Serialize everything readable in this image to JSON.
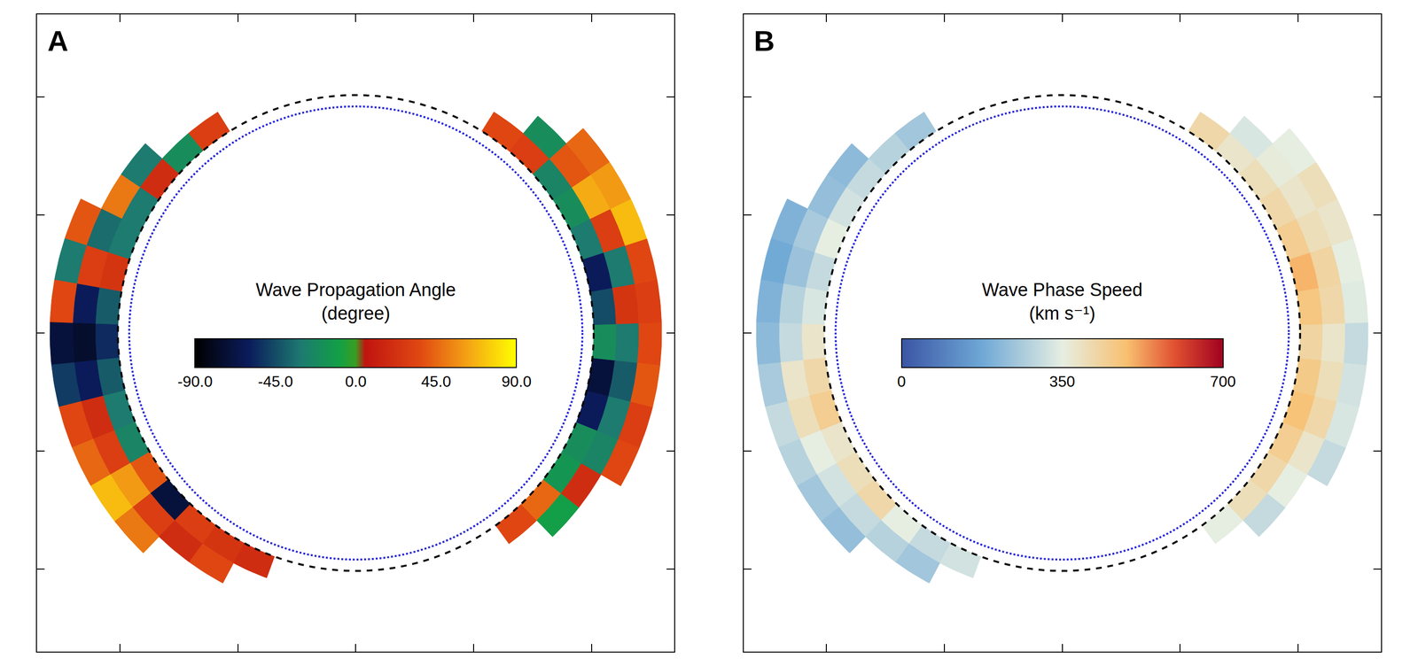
{
  "chart_data": [
    {
      "type": "heatmap",
      "panel": "A",
      "colorbar_title": "Wave Propagation Angle",
      "colorbar_unit": "(degree)",
      "zlim": [
        -90,
        90
      ],
      "zticks": [
        {
          "value": -90,
          "label": "-90.0"
        },
        {
          "value": -45,
          "label": "-45.0"
        },
        {
          "value": 0,
          "label": "0.0"
        },
        {
          "value": 45,
          "label": "45.0"
        },
        {
          "value": 90,
          "label": "90.0"
        }
      ],
      "xlim": [
        -1350,
        1350
      ],
      "ylim": [
        -1350,
        1350
      ],
      "xticks": [
        -1000,
        -500,
        0,
        500,
        1000
      ],
      "yticks": [
        -1000,
        -500,
        0,
        500,
        1000
      ],
      "tick_labels": false,
      "limb_radius": 960,
      "occulter_radius": 1008,
      "radii": [
        1008,
        1104,
        1200,
        1296
      ],
      "arcs": [
        {
          "position_angles": [
            32,
            40,
            48,
            56,
            64,
            72,
            80,
            88,
            96,
            104,
            112,
            120,
            128,
            136,
            144,
            152,
            160
          ],
          "values": [
            [
              30,
              null,
              null
            ],
            [
              -20,
              null,
              null
            ],
            [
              20,
              -30,
              null
            ],
            [
              -30,
              50,
              null
            ],
            [
              -30,
              -35,
              40
            ],
            [
              25,
              30,
              -30
            ],
            [
              -40,
              -60,
              35
            ],
            [
              -55,
              -75,
              -70
            ],
            [
              -40,
              -60,
              -50
            ],
            [
              -30,
              20,
              35
            ],
            [
              -25,
              30,
              45
            ],
            [
              40,
              60,
              70
            ],
            [
              -70,
              30,
              50
            ],
            [
              30,
              20,
              null
            ],
            [
              25,
              35,
              null
            ],
            [
              20,
              null,
              null
            ]
          ]
        },
        {
          "position_angles": [
            216,
            224,
            232,
            240,
            248,
            256,
            264,
            272,
            280,
            288,
            296,
            304,
            312,
            320,
            328
          ],
          "values": [
            [
              35,
              null,
              null
            ],
            [
              45,
              -10,
              null
            ],
            [
              -15,
              20,
              null
            ],
            [
              -20,
              -25,
              35
            ],
            [
              -60,
              -30,
              30
            ],
            [
              -70,
              -40,
              40
            ],
            [
              -20,
              -30,
              35
            ],
            [
              -45,
              25,
              30
            ],
            [
              -60,
              -30,
              35
            ],
            [
              -30,
              30,
              70
            ],
            [
              -20,
              65,
              60
            ],
            [
              -25,
              40,
              45
            ],
            [
              30,
              -20,
              null
            ],
            [
              35,
              null,
              null
            ]
          ]
        }
      ]
    },
    {
      "type": "heatmap",
      "panel": "B",
      "colorbar_title": "Wave Phase Speed",
      "colorbar_unit": "(km s⁻¹)",
      "zlim": [
        0,
        700
      ],
      "zticks": [
        0,
        350,
        700
      ],
      "xlim": [
        -1350,
        1350
      ],
      "ylim": [
        -1350,
        1350
      ],
      "xticks": [
        -1000,
        -500,
        0,
        500,
        1000
      ],
      "yticks": [
        -1000,
        -500,
        0,
        500,
        1000
      ],
      "tick_labels": false,
      "limb_radius": 960,
      "occulter_radius": 1008,
      "radii": [
        1008,
        1104,
        1200,
        1296
      ],
      "arcs": [
        {
          "position_angles": [
            32,
            40,
            48,
            56,
            64,
            72,
            80,
            88,
            96,
            104,
            112,
            120,
            128,
            136,
            144,
            152,
            160
          ],
          "values": [
            [
              250,
              null,
              null
            ],
            [
              280,
              null,
              null
            ],
            [
              300,
              220,
              null
            ],
            [
              320,
              230,
              null
            ],
            [
              350,
              260,
              200
            ],
            [
              300,
              240,
              180
            ],
            [
              330,
              280,
              200
            ],
            [
              380,
              300,
              220
            ],
            [
              420,
              380,
              260
            ],
            [
              450,
              400,
              300
            ],
            [
              380,
              350,
              280
            ],
            [
              400,
              320,
              250
            ],
            [
              420,
              300,
              230
            ],
            [
              350,
              280,
              null
            ],
            [
              300,
              250,
              null
            ],
            [
              320,
              null,
              null
            ]
          ]
        },
        {
          "position_angles": [
            216,
            224,
            232,
            240,
            248,
            256,
            264,
            272,
            280,
            288,
            296,
            304,
            312,
            320,
            328
          ],
          "values": [
            [
              350,
              null,
              null
            ],
            [
              400,
              300,
              null
            ],
            [
              420,
              350,
              null
            ],
            [
              450,
              380,
              300
            ],
            [
              480,
              420,
              330
            ],
            [
              460,
              400,
              320
            ],
            [
              430,
              380,
              300
            ],
            [
              470,
              420,
              340
            ],
            [
              500,
              430,
              350
            ],
            [
              450,
              400,
              380
            ],
            [
              420,
              380,
              400
            ],
            [
              400,
              360,
              350
            ],
            [
              380,
              330,
              null
            ],
            [
              420,
              null,
              null
            ]
          ]
        }
      ]
    }
  ]
}
